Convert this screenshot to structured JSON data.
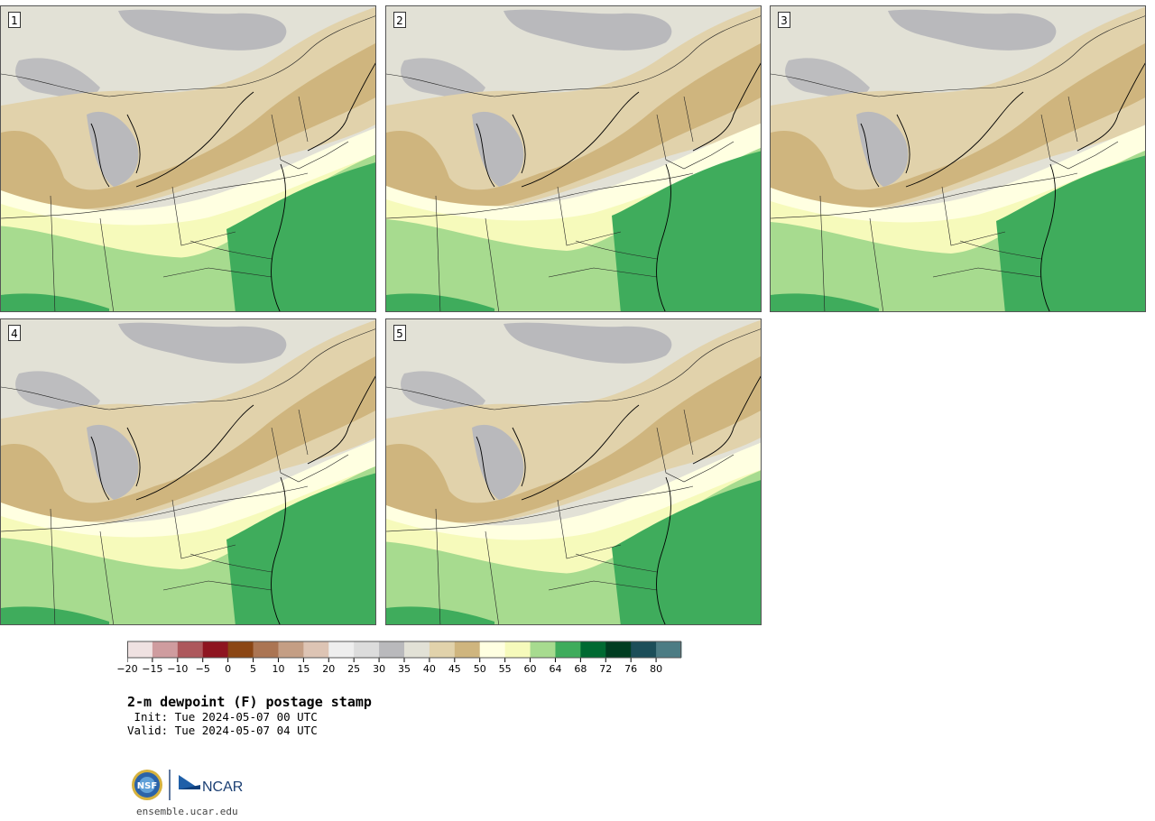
{
  "panels": [
    {
      "label": "1",
      "humid": 0.55
    },
    {
      "label": "2",
      "humid": 0.8
    },
    {
      "label": "3",
      "humid": 0.7
    },
    {
      "label": "4",
      "humid": 0.6
    },
    {
      "label": "5",
      "humid": 0.45
    }
  ],
  "colorbar": {
    "ticks": [
      "−20",
      "−15",
      "−10",
      "−5",
      "0",
      "5",
      "10",
      "15",
      "20",
      "25",
      "30",
      "35",
      "40",
      "45",
      "50",
      "55",
      "60",
      "64",
      "68",
      "72",
      "76",
      "80"
    ],
    "colors": [
      "#efe1e1",
      "#cf9c9f",
      "#ad585c",
      "#8e1520",
      "#8b4614",
      "#ab7553",
      "#c49e84",
      "#ddc4b4",
      "#eeeeee",
      "#dcdcdc",
      "#b9b9bc",
      "#e2e1d6",
      "#e1d2ab",
      "#cfb57e",
      "#ffffe1",
      "#f6fabb",
      "#a7db8f",
      "#3fac5c",
      "#006a32",
      "#003d21",
      "#1c4e59",
      "#4c7c84"
    ]
  },
  "title": {
    "main": "2-m dewpoint (F) postage stamp",
    "init": " Init: Tue 2024-05-07 00 UTC",
    "valid": "Valid: Tue 2024-05-07 04 UTC"
  },
  "footer": {
    "nsf": "NSF",
    "ncar": "NCAR",
    "site": "ensemble.ucar.edu"
  }
}
